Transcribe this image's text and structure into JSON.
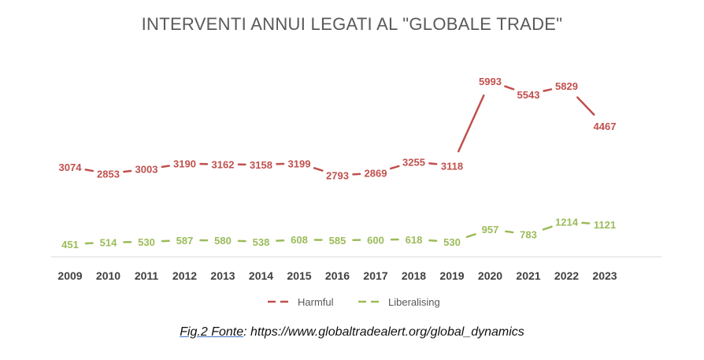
{
  "chart_data": {
    "type": "line",
    "title": "INTERVENTI ANNUI LEGATI AL \"GLOBALE TRADE\"",
    "categories": [
      "2009",
      "2010",
      "2011",
      "2012",
      "2013",
      "2014",
      "2015",
      "2016",
      "2017",
      "2018",
      "2019",
      "2020",
      "2021",
      "2022",
      "2023"
    ],
    "series": [
      {
        "name": "Harmful",
        "color": "#c0504d",
        "values": [
          3074,
          2853,
          3003,
          3190,
          3162,
          3158,
          3199,
          2793,
          2869,
          3255,
          3118,
          5993,
          5543,
          5829,
          4467
        ]
      },
      {
        "name": "Liberalising",
        "color": "#9bbb59",
        "values": [
          451,
          514,
          530,
          587,
          580,
          538,
          608,
          585,
          600,
          618,
          530,
          957,
          783,
          1214,
          1121
        ]
      }
    ],
    "legend_position": "bottom",
    "grid": false
  },
  "caption": {
    "prefix": "Fig.2 Fonte",
    "text": ": https://www.globaltradealert.org/global_dynamics"
  }
}
